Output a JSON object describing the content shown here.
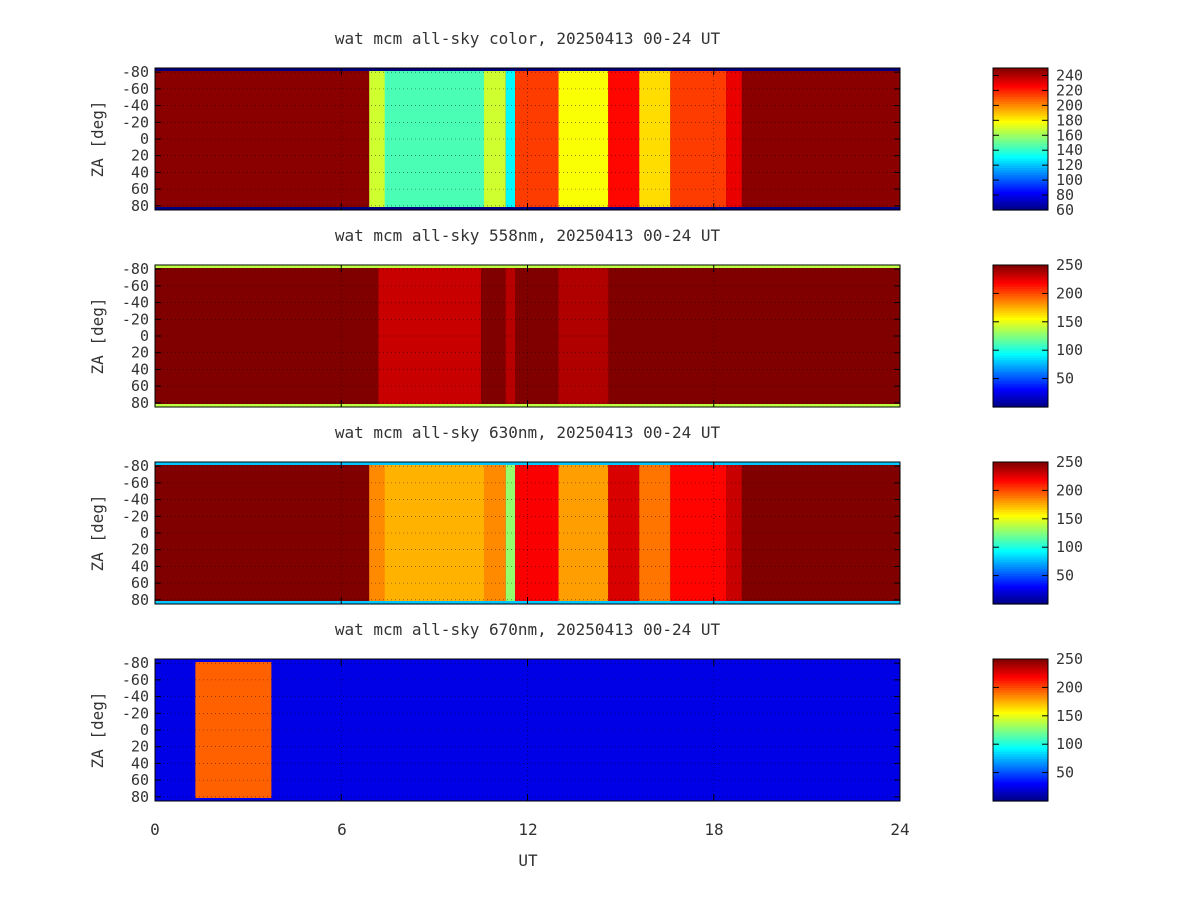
{
  "chart_data": {
    "type": "heatmap",
    "x_axis": {
      "label": "UT",
      "range": [
        0,
        24
      ],
      "ticks": [
        0,
        6,
        12,
        18,
        24
      ],
      "tick_labels": [
        "0",
        "6",
        "12",
        "18",
        "24"
      ]
    },
    "y_axis": {
      "label": "ZA [deg]",
      "range": [
        -85,
        85
      ],
      "ticks": [
        -80,
        -60,
        -40,
        -20,
        0,
        20,
        40,
        60,
        80
      ],
      "tick_labels": [
        "-80",
        "-60",
        "-40",
        "-20",
        "0",
        "20",
        "40",
        "60",
        "80"
      ]
    },
    "colormap": "jet",
    "grid": true,
    "panels": [
      {
        "title": "wat mcm all-sky color, 20250413 00-24 UT",
        "colorbar": {
          "range": [
            60,
            250
          ],
          "ticks": [
            60,
            80,
            100,
            120,
            140,
            160,
            180,
            200,
            220,
            240
          ]
        },
        "background_value": 248,
        "edge_value": 40,
        "features": [
          {
            "x0": 6.9,
            "x1": 11.3,
            "value": 170
          },
          {
            "x0": 7.4,
            "x1": 10.6,
            "value": 145
          },
          {
            "x0": 11.3,
            "x1": 11.6,
            "value": 130
          },
          {
            "x0": 11.6,
            "x1": 13.0,
            "value": 215
          },
          {
            "x0": 13.0,
            "x1": 14.6,
            "value": 178
          },
          {
            "x0": 14.6,
            "x1": 15.6,
            "value": 225
          },
          {
            "x0": 15.6,
            "x1": 16.6,
            "value": 185
          },
          {
            "x0": 16.6,
            "x1": 18.4,
            "value": 215
          },
          {
            "x0": 18.4,
            "x1": 18.9,
            "value": 230
          }
        ]
      },
      {
        "title": "wat mcm all-sky 558nm, 20250413 00-24 UT",
        "colorbar": {
          "range": [
            0,
            250
          ],
          "ticks": [
            50,
            100,
            150,
            200,
            250
          ]
        },
        "background_value": 250,
        "edge_value": 140,
        "features": [
          {
            "x0": 7.2,
            "x1": 10.5,
            "value": 232
          },
          {
            "x0": 11.3,
            "x1": 11.6,
            "value": 236
          },
          {
            "x0": 13.0,
            "x1": 14.6,
            "value": 238
          }
        ]
      },
      {
        "title": "wat mcm all-sky 630nm, 20250413 00-24 UT",
        "colorbar": {
          "range": [
            0,
            250
          ],
          "ticks": [
            50,
            100,
            150,
            200,
            250
          ]
        },
        "background_value": 250,
        "edge_value": 80,
        "features": [
          {
            "x0": 6.9,
            "x1": 11.3,
            "value": 185
          },
          {
            "x0": 7.4,
            "x1": 10.6,
            "value": 175
          },
          {
            "x0": 11.3,
            "x1": 11.6,
            "value": 130
          },
          {
            "x0": 11.6,
            "x1": 13.0,
            "value": 220
          },
          {
            "x0": 13.0,
            "x1": 14.6,
            "value": 180
          },
          {
            "x0": 14.6,
            "x1": 15.6,
            "value": 228
          },
          {
            "x0": 15.6,
            "x1": 16.6,
            "value": 190
          },
          {
            "x0": 16.6,
            "x1": 18.4,
            "value": 218
          },
          {
            "x0": 18.4,
            "x1": 18.9,
            "value": 232
          }
        ]
      },
      {
        "title": "wat mcm all-sky 670nm, 20250413 00-24 UT",
        "colorbar": {
          "range": [
            0,
            250
          ],
          "ticks": [
            50,
            100,
            150,
            200,
            250
          ]
        },
        "background_value": 25,
        "edge_value": 25,
        "features": [
          {
            "x0": 1.3,
            "x1": 3.75,
            "value": 195
          }
        ]
      }
    ]
  }
}
